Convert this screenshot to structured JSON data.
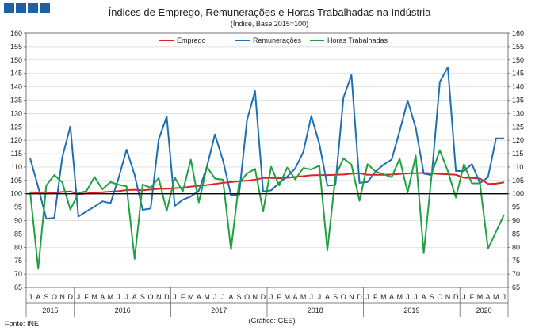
{
  "header_logo": {
    "color": "#1f5fa6",
    "squares": 4
  },
  "title": "Índices de Emprego, Remunerações e Horas Trabalhadas na Indústria",
  "subtitle": "(Índice, Base 2015=100)",
  "source": "Fonte: INE",
  "credit": "(Gráfico: GEE)",
  "chart_data": {
    "type": "line",
    "x_labels": [
      "J",
      "A",
      "S",
      "O",
      "N",
      "D",
      "J",
      "F",
      "M",
      "A",
      "M",
      "J",
      "J",
      "A",
      "S",
      "O",
      "N",
      "D",
      "J",
      "F",
      "M",
      "A",
      "M",
      "J",
      "J",
      "A",
      "S",
      "O",
      "N",
      "D",
      "J",
      "F",
      "M",
      "A",
      "M",
      "J",
      "J",
      "A",
      "S",
      "O",
      "N",
      "D",
      "J",
      "F",
      "M",
      "A",
      "M",
      "J",
      "J",
      "A",
      "S",
      "O",
      "N",
      "D",
      "J",
      "F",
      "M",
      "A",
      "M",
      "J"
    ],
    "year_labels": [
      {
        "label": "2015",
        "start": 0,
        "end": 5
      },
      {
        "label": "2016",
        "start": 6,
        "end": 17
      },
      {
        "label": "2017",
        "start": 18,
        "end": 29
      },
      {
        "label": "2018",
        "start": 30,
        "end": 41
      },
      {
        "label": "2019",
        "start": 42,
        "end": 53
      },
      {
        "label": "2020",
        "start": 54,
        "end": 59
      }
    ],
    "ylim": [
      65,
      160
    ],
    "yticks": [
      65,
      70,
      75,
      80,
      85,
      90,
      95,
      100,
      105,
      110,
      115,
      120,
      125,
      130,
      135,
      140,
      145,
      150,
      155,
      160
    ],
    "reference_line": 100,
    "grid": true,
    "legend_position": "top",
    "series": [
      {
        "name": "Emprego",
        "color": "#e02020",
        "values": [
          100.6,
          100.5,
          100.6,
          100.4,
          100.7,
          100.9,
          99.9,
          100.1,
          100.4,
          100.6,
          100.8,
          101.0,
          101.4,
          101.5,
          101.3,
          101.6,
          101.9,
          101.9,
          102.1,
          102.3,
          102.7,
          103.0,
          103.3,
          103.7,
          104.1,
          104.4,
          104.7,
          104.9,
          105.3,
          105.9,
          105.9,
          105.8,
          106.0,
          106.3,
          106.6,
          106.9,
          107.0,
          107.0,
          107.1,
          107.2,
          107.5,
          107.7,
          107.1,
          107.1,
          107.1,
          107.2,
          107.4,
          107.6,
          107.7,
          107.8,
          107.6,
          107.4,
          107.3,
          107.1,
          106.0,
          105.9,
          105.7,
          103.7,
          103.8,
          104.3
        ]
      },
      {
        "name": "Remunerações",
        "color": "#1f6fb4",
        "values": [
          113.2,
          102.5,
          90.7,
          91.0,
          113.7,
          125.2,
          91.5,
          93.4,
          95.2,
          97.2,
          96.5,
          105.8,
          116.5,
          107.1,
          94.0,
          94.5,
          120.3,
          128.9,
          95.5,
          97.8,
          99.0,
          101.2,
          110.1,
          122.2,
          112.5,
          99.5,
          99.5,
          127.6,
          138.4,
          100.9,
          101.3,
          104.1,
          106.4,
          109.5,
          115.6,
          129.1,
          118.7,
          103.1,
          103.3,
          135.9,
          144.4,
          104.1,
          104.4,
          108.3,
          110.9,
          112.8,
          123.4,
          134.8,
          124.7,
          107.5,
          107.0,
          141.8,
          147.3,
          108.5,
          108.5,
          111.1,
          104.0,
          106.2,
          120.7,
          120.7
        ]
      },
      {
        "name": "Horas Trabalhadas",
        "color": "#21a043",
        "values": [
          100.6,
          72.0,
          103.1,
          107.0,
          104.3,
          94.1,
          100.3,
          101.0,
          106.3,
          101.7,
          104.4,
          103.4,
          102.8,
          75.7,
          103.5,
          102.3,
          105.9,
          93.6,
          106.1,
          100.9,
          112.8,
          96.8,
          110.1,
          105.7,
          105.3,
          79.2,
          104.0,
          107.6,
          109.3,
          93.4,
          110.1,
          103.1,
          109.8,
          105.4,
          109.6,
          109.1,
          110.5,
          78.9,
          106.4,
          113.3,
          110.9,
          97.4,
          111.1,
          108.3,
          107.3,
          106.2,
          113.1,
          100.5,
          114.3,
          77.8,
          107.6,
          116.3,
          108.5,
          98.6,
          111.0,
          103.9,
          103.9,
          79.5,
          85.8,
          92.2
        ]
      }
    ]
  }
}
